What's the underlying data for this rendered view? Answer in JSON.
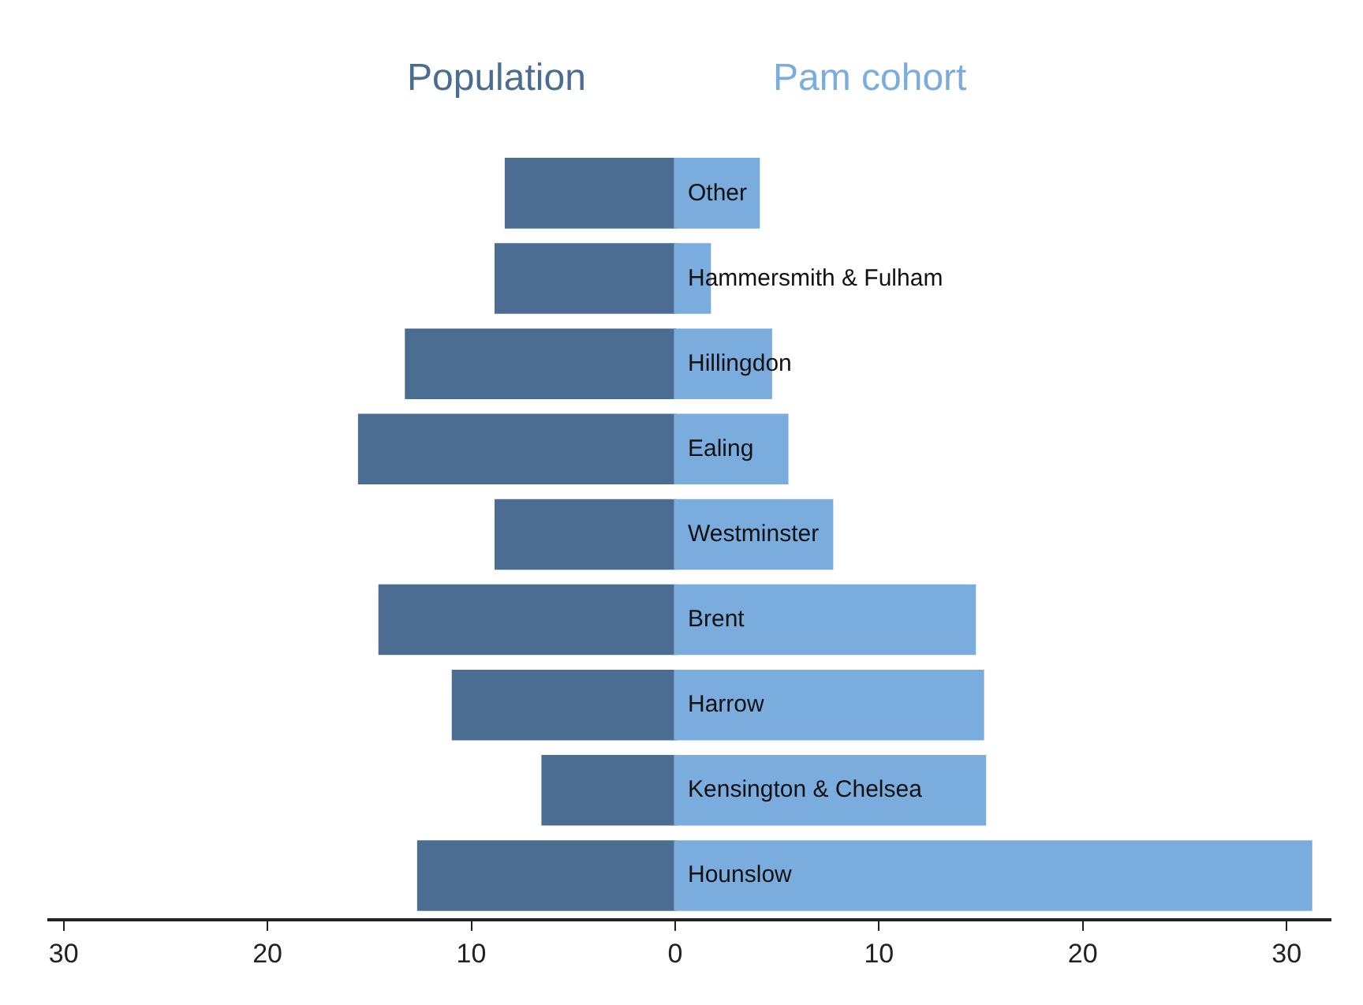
{
  "chart_data": {
    "type": "bar",
    "orientation": "horizontal",
    "stacked": true,
    "categories": [
      "Other",
      "Hammersmith & Fulham",
      "Hillingdon",
      "Ealing",
      "Westminster",
      "Brent",
      "Harrow",
      "Kensington & Chelsea",
      "Hounslow"
    ],
    "series": [
      {
        "name": "Population",
        "color": "#4a6d91",
        "values": [
          -8.3,
          -8.8,
          -13.2,
          -15.5,
          -8.8,
          -14.5,
          -10.9,
          -6.5,
          -12.6
        ]
      },
      {
        "name": "Pam cohort",
        "color": "#7aaddd",
        "values": [
          4.1,
          1.7,
          4.7,
          5.5,
          7.7,
          14.7,
          15.1,
          15.2,
          31.2
        ]
      }
    ],
    "xlim": [
      -30.8,
      32.2
    ],
    "xticks": [
      {
        "value": -30,
        "label": "30"
      },
      {
        "value": -20,
        "label": "20"
      },
      {
        "value": -10,
        "label": "10"
      },
      0,
      10,
      20,
      30
    ]
  }
}
